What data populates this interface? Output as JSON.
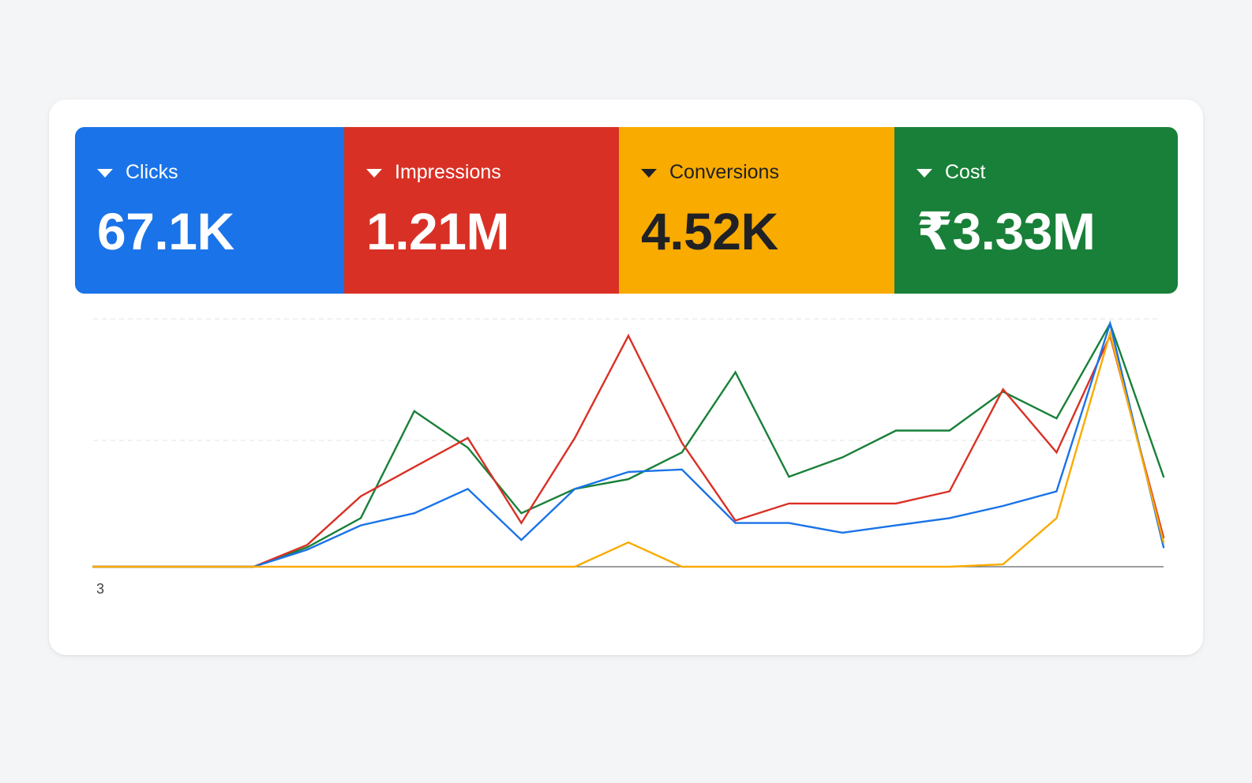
{
  "metrics": [
    {
      "key": "clicks",
      "label": "Clicks",
      "value": "67.1K",
      "color": "#1a73e8",
      "text_color": "#ffffff"
    },
    {
      "key": "impressions",
      "label": "Impressions",
      "value": "1.21M",
      "color": "#d93025",
      "text_color": "#ffffff"
    },
    {
      "key": "conversions",
      "label": "Conversions",
      "value": "4.52K",
      "color": "#f9ab00",
      "text_color": "#202124"
    },
    {
      "key": "cost",
      "label": "Cost",
      "value": "₹3.33M",
      "color": "#188038",
      "text_color": "#ffffff"
    }
  ],
  "chart_data": {
    "type": "line",
    "x_tick_labels": [
      "3"
    ],
    "grid": true,
    "series": [
      {
        "key": "clicks",
        "color": "#1a73e8",
        "values": [
          0,
          0,
          0,
          0,
          7,
          17,
          22,
          32,
          11,
          32,
          39,
          40,
          18,
          18,
          14,
          17,
          20,
          25,
          31,
          100,
          8
        ]
      },
      {
        "key": "impressions",
        "color": "#d93025",
        "values": [
          0,
          0,
          0,
          0,
          9,
          29,
          41,
          53,
          18,
          53,
          95,
          51,
          19,
          26,
          26,
          26,
          31,
          73,
          47,
          95,
          12
        ]
      },
      {
        "key": "conversions",
        "color": "#f9ab00",
        "values": [
          0,
          0,
          0,
          0,
          0,
          0,
          0,
          0,
          0,
          0,
          10,
          0,
          0,
          0,
          0,
          0,
          0,
          1,
          20,
          96,
          10
        ]
      },
      {
        "key": "cost",
        "color": "#188038",
        "values": [
          0,
          0,
          0,
          0,
          8,
          20,
          64,
          49,
          22,
          32,
          36,
          47,
          80,
          37,
          45,
          56,
          56,
          72,
          61,
          100,
          37
        ]
      }
    ]
  }
}
